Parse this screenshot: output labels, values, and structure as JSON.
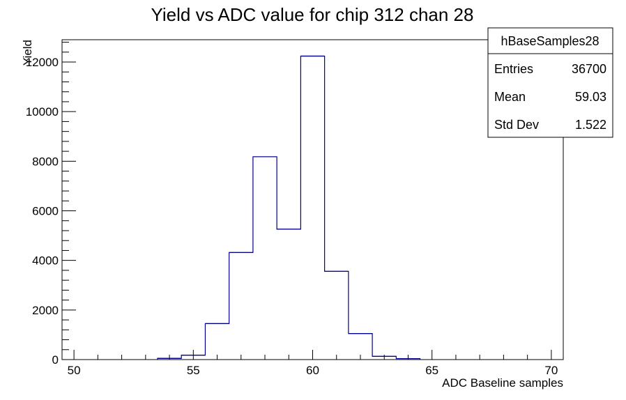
{
  "chart_data": {
    "type": "histogram",
    "title": "Yield vs ADC value for chip 312 chan 28",
    "xlabel": "ADC Baseline samples",
    "ylabel": "Yield",
    "xlim": [
      49.5,
      70.5
    ],
    "ylim": [
      0,
      12900
    ],
    "x_ticks": [
      50,
      55,
      60,
      65,
      70
    ],
    "y_ticks": [
      0,
      2000,
      4000,
      6000,
      8000,
      10000,
      12000
    ],
    "bin_edges": [
      53.5,
      54.5,
      55.5,
      56.5,
      57.5,
      58.5,
      59.5,
      60.5,
      61.5,
      62.5,
      63.5,
      64.5
    ],
    "values": [
      50,
      180,
      1450,
      4320,
      8180,
      5260,
      12240,
      3560,
      1050,
      130,
      40
    ],
    "line_color": "#00008b",
    "grid": false,
    "stats_box": {
      "name": "hBaseSamples28",
      "rows": [
        {
          "label": "Entries",
          "value": "36700"
        },
        {
          "label": "Mean",
          "value": "59.03"
        },
        {
          "label": "Std Dev",
          "value": "1.522"
        }
      ],
      "placement": "top-right"
    }
  }
}
